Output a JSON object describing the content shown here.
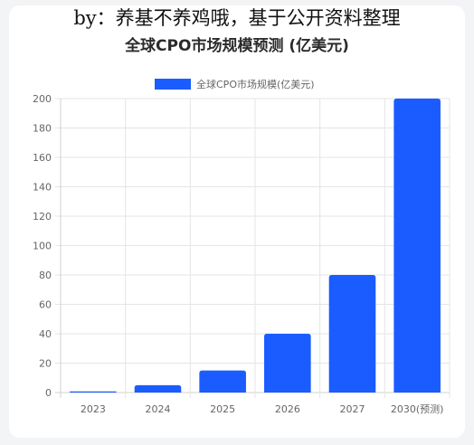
{
  "watermark": "by：养基不养鸡哦，基于公开资料整理",
  "chart_data": {
    "type": "bar",
    "title": "全球CPO市场规模预测 (亿美元)",
    "categories": [
      "2023",
      "2024",
      "2025",
      "2026",
      "2027",
      "2030(预测)"
    ],
    "series": [
      {
        "name": "全球CPO市场规模(亿美元)",
        "values": [
          0.8,
          5,
          15,
          40,
          80,
          200
        ]
      }
    ],
    "y_ticks": [
      "0",
      "20",
      "40",
      "60",
      "80",
      "100",
      "120",
      "140",
      "160",
      "180",
      "200"
    ],
    "ylim": [
      0,
      200
    ],
    "grid": true,
    "legend_position": "top-center",
    "colors": {
      "bar": "#1a5cff",
      "grid": "#e5e5e5",
      "axis": "#d0d0d0"
    }
  }
}
